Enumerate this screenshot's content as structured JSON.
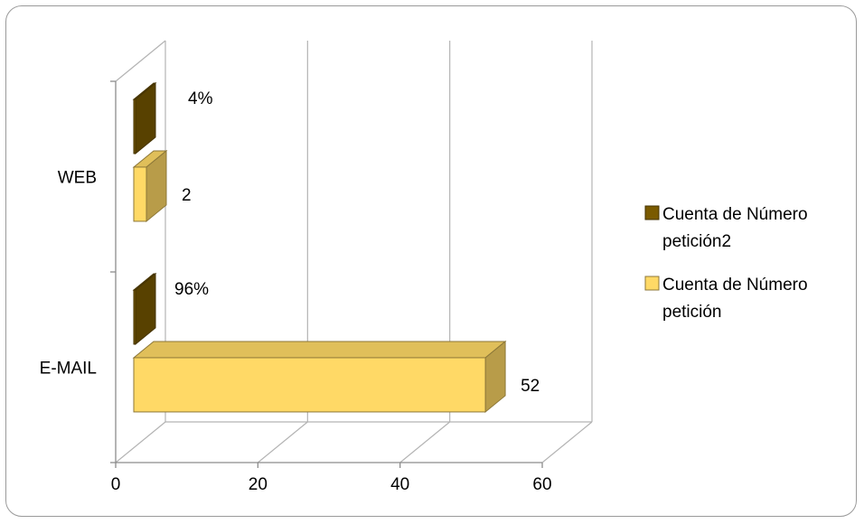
{
  "chart_data": {
    "type": "bar",
    "orientation": "horizontal",
    "style": "3d-clustered",
    "categories": [
      "WEB",
      "E-MAIL"
    ],
    "series": [
      {
        "name": "Cuenta de Número petición2",
        "color": "#7a5a00",
        "values": [
          0.04,
          0.96
        ],
        "data_labels": [
          "4%",
          "96%"
        ]
      },
      {
        "name": "Cuenta de Número petición",
        "color": "#ffd966",
        "values": [
          2,
          52
        ],
        "data_labels": [
          "2",
          "52"
        ]
      }
    ],
    "x_ticks": [
      "0",
      "20",
      "40",
      "60"
    ],
    "xlim": [
      0,
      60
    ],
    "grid": true,
    "legend_position": "right"
  }
}
